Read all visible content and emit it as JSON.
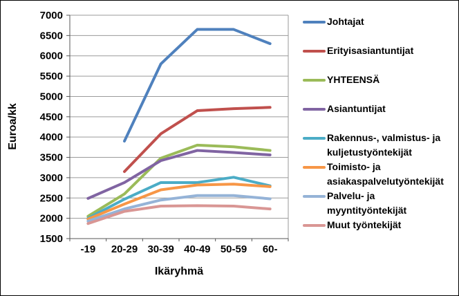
{
  "window": {
    "background": "#ffffff",
    "border_color": "#000000"
  },
  "chart_data": {
    "type": "line",
    "title": "",
    "xlabel": "Ikäryhmä",
    "ylabel": "Euroa/kk",
    "ylim": [
      1500,
      7000
    ],
    "ytick_step": 500,
    "grid": "horizontal",
    "legend_position": "right",
    "categories": [
      "-19",
      "20-29",
      "30-39",
      "40-49",
      "50-59",
      "60-"
    ],
    "series": [
      {
        "name": "Johtajat",
        "legend_lines": [
          "Johtajat"
        ],
        "color": "#4F81BD",
        "values": [
          null,
          3900,
          5800,
          6650,
          6650,
          6300
        ]
      },
      {
        "name": "Erityisasiantuntijat",
        "legend_lines": [
          "Erityisasiantuntijat"
        ],
        "color": "#C0504D",
        "values": [
          null,
          3150,
          4080,
          4650,
          4700,
          4730
        ]
      },
      {
        "name": "YHTEENSÄ",
        "legend_lines": [
          "YHTEENSÄ"
        ],
        "color": "#9BBB59",
        "values": [
          2050,
          2600,
          3480,
          3800,
          3760,
          3670
        ]
      },
      {
        "name": "Asiantuntijat",
        "legend_lines": [
          "Asiantuntijat"
        ],
        "color": "#8064A2",
        "values": [
          2490,
          2880,
          3420,
          3670,
          3620,
          3560
        ]
      },
      {
        "name": "Rakennus-, valmistus- ja kuljetustyöntekijät",
        "legend_lines": [
          "Rakennus-, valmistus- ja",
          "kuljetustyöntekijät"
        ],
        "color": "#4BACC6",
        "values": [
          2000,
          2470,
          2880,
          2880,
          3010,
          2800
        ]
      },
      {
        "name": "Toimisto- ja asiakaspalvelutyöntekijät",
        "legend_lines": [
          "Toimisto- ja",
          "asiakaspalvelutyöntekijät"
        ],
        "color": "#F79646",
        "values": [
          1980,
          2350,
          2700,
          2820,
          2840,
          2780
        ]
      },
      {
        "name": "Palvelu- ja myyntityöntekijät",
        "legend_lines": [
          "Palvelu- ja",
          "myyntityöntekijät"
        ],
        "color": "#95B3D7",
        "values": [
          1930,
          2230,
          2450,
          2560,
          2560,
          2480
        ]
      },
      {
        "name": "Muut työntekijät",
        "legend_lines": [
          "Muut työntekijät"
        ],
        "color": "#D99694",
        "values": [
          1870,
          2170,
          2300,
          2310,
          2300,
          2230
        ]
      }
    ],
    "axis_colors": {
      "gridline": "#9a9a9a",
      "axis_line": "#555555",
      "text": "#000000"
    }
  }
}
